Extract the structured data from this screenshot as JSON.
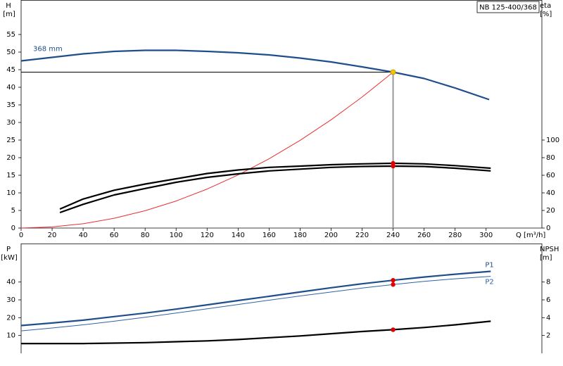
{
  "chart_data": [
    {
      "type": "line",
      "title": "NB 125-400/368",
      "x_label": "Q [m³/h]",
      "y_label": "H",
      "y_unit": "[m]",
      "y2_label": "eta",
      "y2_unit": "[%]",
      "xlim": [
        0,
        336
      ],
      "xticks": [
        0,
        20,
        40,
        60,
        80,
        100,
        120,
        140,
        160,
        180,
        200,
        220,
        240,
        260,
        280,
        300
      ],
      "ylim": [
        0,
        64.8
      ],
      "yticks": [
        0,
        5,
        10,
        15,
        20,
        25,
        30,
        35,
        40,
        45,
        50,
        55
      ],
      "y2lim": [
        0,
        259.2
      ],
      "y2ticks": [
        0,
        20,
        40,
        60,
        80,
        100
      ],
      "duty_point": {
        "x": 240,
        "y": 44.3,
        "color": "#f5c400"
      },
      "marker_color": "#e00000",
      "series": [
        {
          "name": "368 mm",
          "color": "#1f4e8c",
          "x": [
            0,
            20,
            40,
            60,
            80,
            100,
            120,
            140,
            160,
            180,
            200,
            220,
            240,
            260,
            280,
            302
          ],
          "values": [
            47.5,
            48.5,
            49.5,
            50.2,
            50.5,
            50.5,
            50.2,
            49.8,
            49.2,
            48.3,
            47.2,
            45.8,
            44.3,
            42.5,
            39.8,
            36.5
          ]
        },
        {
          "color": "#e83030",
          "x": [
            0,
            20,
            40,
            60,
            80,
            100,
            120,
            140,
            160,
            180,
            200,
            220,
            240
          ],
          "values": [
            0,
            0.31,
            1.23,
            2.77,
            4.92,
            7.69,
            11.08,
            15.07,
            19.69,
            24.92,
            30.76,
            37.22,
            44.3
          ]
        },
        {
          "color": "#000000",
          "axis": "y2",
          "x": [
            25,
            40,
            60,
            80,
            100,
            120,
            140,
            160,
            180,
            200,
            220,
            240,
            260,
            280,
            303
          ],
          "values": [
            21.6,
            33,
            43,
            50,
            56,
            62,
            66,
            69,
            70.4,
            72,
            73,
            73.6,
            73,
            71,
            68
          ]
        },
        {
          "color": "#000000",
          "axis": "y2",
          "x": [
            25,
            40,
            60,
            80,
            100,
            120,
            140,
            160,
            180,
            200,
            220,
            240,
            260,
            280,
            303
          ],
          "values": [
            17.6,
            27,
            37.6,
            45,
            52,
            57.6,
            61.6,
            65,
            67,
            69,
            70,
            70.4,
            70,
            68,
            65
          ]
        }
      ]
    },
    {
      "type": "line",
      "y_label": "P",
      "y_unit": "[kW]",
      "y2_label": "NPSH",
      "y2_unit": "[m]",
      "xlim": [
        0,
        336
      ],
      "ylim": [
        0,
        61.6
      ],
      "yticks": [
        10,
        20,
        30,
        40
      ],
      "y2lim": [
        0,
        12.32
      ],
      "y2ticks": [
        2,
        4,
        6,
        8
      ],
      "duty_point": {
        "x": 240
      },
      "marker_color": "#e00000",
      "series": [
        {
          "name": "P1",
          "color": "#1f4e8c",
          "x": [
            0,
            20,
            40,
            60,
            80,
            100,
            120,
            140,
            160,
            180,
            200,
            220,
            240,
            260,
            280,
            303
          ],
          "values": [
            15.6,
            17,
            18.6,
            20.6,
            22.6,
            24.8,
            27.2,
            29.6,
            32,
            34.4,
            36.8,
            39,
            41,
            42.8,
            44.4,
            46
          ]
        },
        {
          "name": "P2",
          "color": "#2d63a8",
          "x": [
            0,
            20,
            40,
            60,
            80,
            100,
            120,
            140,
            160,
            180,
            200,
            220,
            240,
            260,
            280,
            303
          ],
          "values": [
            12.6,
            14.2,
            16,
            18,
            20.2,
            22.6,
            25,
            27.4,
            29.8,
            32.2,
            34.4,
            36.6,
            38.6,
            40.4,
            41.8,
            43.2
          ]
        },
        {
          "color": "#000000",
          "axis": "y2",
          "x": [
            0,
            40,
            80,
            100,
            120,
            140,
            160,
            180,
            200,
            220,
            240,
            260,
            280,
            303
          ],
          "values": [
            1.1,
            1.1,
            1.2,
            1.3,
            1.4,
            1.55,
            1.75,
            1.95,
            2.2,
            2.45,
            2.65,
            2.9,
            3.2,
            3.6
          ]
        }
      ]
    }
  ]
}
